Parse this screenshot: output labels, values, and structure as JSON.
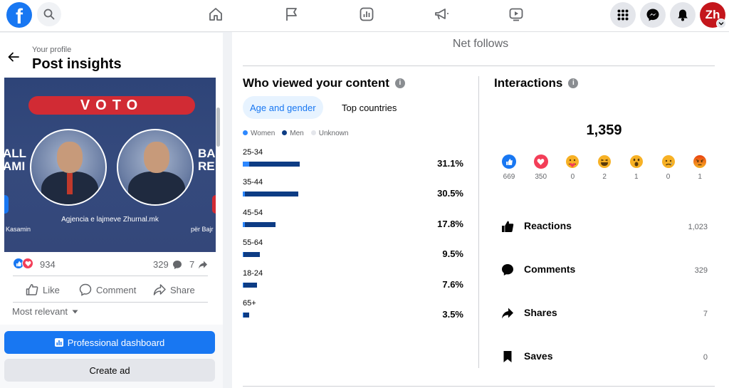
{
  "topbar": {
    "logo_letter": "f",
    "avatar_text": "Zh"
  },
  "post": {
    "subtitle": "Your profile",
    "title": "Post insights",
    "image": {
      "banner": "VOTO",
      "side_left": "ALL\nAMI",
      "side_right": "BA\nRE",
      "caption": "Agjencia e lajmeve Zhurnal.mk",
      "small_left": "Kasamin",
      "small_right": "për Bajr"
    },
    "reaction_count": "934",
    "comment_count": "329",
    "share_count": "7",
    "actions": {
      "like": "Like",
      "comment": "Comment",
      "share": "Share"
    },
    "sort_label": "Most relevant",
    "professional_dashboard": "Professional dashboard",
    "create_ad": "Create ad"
  },
  "main": {
    "net_follows": "Net follows",
    "viewers": {
      "title": "Who viewed your content",
      "tabs": [
        "Age and gender",
        "Top countries"
      ],
      "legend": [
        {
          "label": "Women",
          "color": "#2d88ff"
        },
        {
          "label": "Men",
          "color": "#0d3c84"
        },
        {
          "label": "Unknown",
          "color": "#e4e6eb"
        }
      ],
      "groups": [
        {
          "age": "25-34",
          "pct": "31.1%",
          "women": 0.11,
          "men": 0.89
        },
        {
          "age": "35-44",
          "pct": "30.5%",
          "women": 0.04,
          "men": 0.96
        },
        {
          "age": "45-54",
          "pct": "17.8%",
          "women": 0.06,
          "men": 0.94
        },
        {
          "age": "55-64",
          "pct": "9.5%",
          "women": 0.04,
          "men": 0.96
        },
        {
          "age": "18-24",
          "pct": "7.6%",
          "women": 0.05,
          "men": 0.95
        },
        {
          "age": "65+",
          "pct": "3.5%",
          "women": 0.1,
          "men": 0.9
        }
      ]
    },
    "interactions": {
      "title": "Interactions",
      "total": "1,359",
      "reactions": [
        {
          "icon": "like-icon",
          "count": "669",
          "color": "#1877f2"
        },
        {
          "icon": "love-icon",
          "count": "350",
          "color": "#f33e58"
        },
        {
          "icon": "care-icon",
          "count": "0",
          "color": "#f7b125"
        },
        {
          "icon": "haha-icon",
          "count": "2",
          "color": "#f7b125"
        },
        {
          "icon": "wow-icon",
          "count": "1",
          "color": "#f7b125"
        },
        {
          "icon": "sad-icon",
          "count": "0",
          "color": "#f7b125"
        },
        {
          "icon": "angry-icon",
          "count": "1",
          "color": "#e9710f"
        }
      ],
      "metrics": [
        {
          "label": "Reactions",
          "value": "1,023",
          "icon": "thumbs-up-icon"
        },
        {
          "label": "Comments",
          "value": "329",
          "icon": "comment-bubble-icon"
        },
        {
          "label": "Shares",
          "value": "7",
          "icon": "share-arrow-icon"
        },
        {
          "label": "Saves",
          "value": "0",
          "icon": "bookmark-icon"
        }
      ]
    }
  }
}
